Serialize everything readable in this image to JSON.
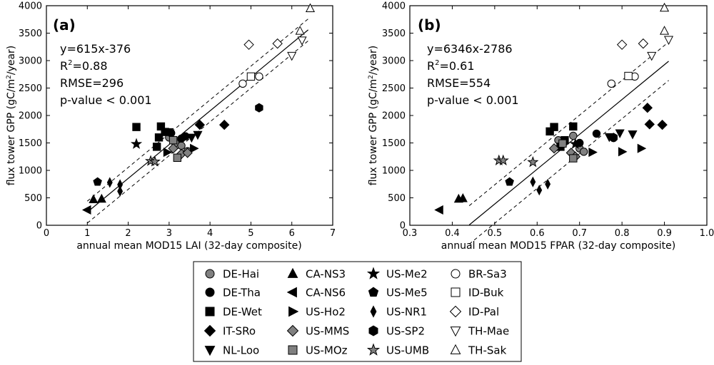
{
  "chart_data": [
    {
      "panel_label": "(a)",
      "type": "scatter",
      "xlabel": "annual mean MOD15 LAI (32-day composite)",
      "ylabel": "flux tower GPP (gC/m²/year)",
      "xlim": [
        0,
        7
      ],
      "ylim": [
        0,
        4000
      ],
      "xticks": [
        0,
        1,
        2,
        3,
        4,
        5,
        6,
        7
      ],
      "xtick_labels": [
        "0",
        "1",
        "2",
        "3",
        "4",
        "5",
        "6",
        "7"
      ],
      "yticks": [
        0,
        500,
        1000,
        1500,
        2000,
        2500,
        3000,
        3500,
        4000
      ],
      "ytick_labels": [
        "0",
        "500",
        "1000",
        "1500",
        "2000",
        "2500",
        "3000",
        "3500",
        "4000"
      ],
      "stats": {
        "equation": "y=615x-376",
        "r2_label": "R",
        "r2_value": "=0.88",
        "rmse": "RMSE=296",
        "pvalue": "p-value < 0.001"
      },
      "fit": {
        "slope": 615,
        "intercept": -376,
        "x_range": [
          1.0,
          6.4
        ],
        "band_offset": 200
      },
      "points": [
        {
          "site": "DE-Hai",
          "x": 3.0,
          "y": 1600
        },
        {
          "site": "DE-Hai",
          "x": 3.15,
          "y": 1500
        },
        {
          "site": "DE-Hai",
          "x": 3.3,
          "y": 1450
        },
        {
          "site": "DE-Hai",
          "x": 3.45,
          "y": 1350
        },
        {
          "site": "DE-Tha",
          "x": 3.05,
          "y": 1680
        },
        {
          "site": "DE-Tha",
          "x": 3.4,
          "y": 1620
        },
        {
          "site": "DE-Tha",
          "x": 3.3,
          "y": 1580
        },
        {
          "site": "DE-Wet",
          "x": 2.2,
          "y": 1790
        },
        {
          "site": "DE-Wet",
          "x": 2.8,
          "y": 1800
        },
        {
          "site": "DE-Wet",
          "x": 2.9,
          "y": 1700
        },
        {
          "site": "DE-Wet",
          "x": 2.75,
          "y": 1600
        },
        {
          "site": "DE-Wet",
          "x": 2.7,
          "y": 1430
        },
        {
          "site": "IT-SRo",
          "x": 3.75,
          "y": 1830
        },
        {
          "site": "IT-SRo",
          "x": 4.35,
          "y": 1830
        },
        {
          "site": "NL-Loo",
          "x": 3.0,
          "y": 1700
        },
        {
          "site": "NL-Loo",
          "x": 3.55,
          "y": 1600
        },
        {
          "site": "NL-Loo",
          "x": 3.7,
          "y": 1650
        },
        {
          "site": "CA-NS3",
          "x": 1.15,
          "y": 470
        },
        {
          "site": "CA-NS3",
          "x": 1.35,
          "y": 480
        },
        {
          "site": "CA-NS6",
          "x": 1.0,
          "y": 280
        },
        {
          "site": "US-Ho2",
          "x": 2.95,
          "y": 1330
        },
        {
          "site": "US-Ho2",
          "x": 3.6,
          "y": 1400
        },
        {
          "site": "US-MMS",
          "x": 3.1,
          "y": 1400
        },
        {
          "site": "US-MMS",
          "x": 3.3,
          "y": 1300
        },
        {
          "site": "US-MMS",
          "x": 3.45,
          "y": 1320
        },
        {
          "site": "US-MOz",
          "x": 3.1,
          "y": 1550
        },
        {
          "site": "US-MOz",
          "x": 3.2,
          "y": 1230
        },
        {
          "site": "US-Me2",
          "x": 2.2,
          "y": 1480
        },
        {
          "site": "US-Me5",
          "x": 1.25,
          "y": 790
        },
        {
          "site": "US-NR1",
          "x": 1.55,
          "y": 780
        },
        {
          "site": "US-NR1",
          "x": 1.8,
          "y": 740
        },
        {
          "site": "US-NR1",
          "x": 1.8,
          "y": 620
        },
        {
          "site": "US-SP2",
          "x": 5.2,
          "y": 2140
        },
        {
          "site": "US-UMB",
          "x": 2.55,
          "y": 1170
        },
        {
          "site": "US-UMB",
          "x": 2.65,
          "y": 1160
        },
        {
          "site": "BR-Sa3",
          "x": 4.8,
          "y": 2580
        },
        {
          "site": "BR-Sa3",
          "x": 5.2,
          "y": 2710
        },
        {
          "site": "ID-Buk",
          "x": 5.0,
          "y": 2710
        },
        {
          "site": "ID-Pal",
          "x": 4.95,
          "y": 3290
        },
        {
          "site": "ID-Pal",
          "x": 5.65,
          "y": 3310
        },
        {
          "site": "TH-Mae",
          "x": 6.0,
          "y": 3090
        },
        {
          "site": "TH-Mae",
          "x": 6.25,
          "y": 3370
        },
        {
          "site": "TH-Sak",
          "x": 6.2,
          "y": 3540
        },
        {
          "site": "TH-Sak",
          "x": 6.45,
          "y": 3950
        }
      ]
    },
    {
      "panel_label": "(b)",
      "type": "scatter",
      "xlabel": "annual mean MOD15 FPAR (32-day composite)",
      "ylabel": "flux tower GPP (gC/m²/year)",
      "xlim": [
        0.3,
        1.0
      ],
      "ylim": [
        0,
        4000
      ],
      "xticks": [
        0.3,
        0.4,
        0.5,
        0.6,
        0.7,
        0.8,
        0.9,
        1.0
      ],
      "xtick_labels": [
        "0.3",
        "0.4",
        "0.5",
        "0.6",
        "0.7",
        "0.8",
        "0.9",
        "1.0"
      ],
      "yticks": [
        0,
        500,
        1000,
        1500,
        2000,
        2500,
        3000,
        3500,
        4000
      ],
      "ytick_labels": [
        "0",
        "500",
        "1000",
        "1500",
        "2000",
        "2500",
        "3000",
        "3500",
        "4000"
      ],
      "stats": {
        "equation": "y=6346x-2786",
        "r2_label": "R",
        "r2_value": "=0.61",
        "rmse": "RMSE=554",
        "pvalue": "p-value < 0.001"
      },
      "fit": {
        "slope": 6346,
        "intercept": -2786,
        "x_range": [
          0.44,
          0.91
        ],
        "band_offset": 350
      },
      "points": [
        {
          "site": "DE-Hai",
          "x": 0.685,
          "y": 1630
        },
        {
          "site": "DE-Hai",
          "x": 0.65,
          "y": 1550
        },
        {
          "site": "DE-Hai",
          "x": 0.7,
          "y": 1400
        },
        {
          "site": "DE-Hai",
          "x": 0.71,
          "y": 1340
        },
        {
          "site": "DE-Tha",
          "x": 0.74,
          "y": 1670
        },
        {
          "site": "DE-Tha",
          "x": 0.78,
          "y": 1590
        },
        {
          "site": "DE-Tha",
          "x": 0.7,
          "y": 1500
        },
        {
          "site": "DE-Wet",
          "x": 0.64,
          "y": 1790
        },
        {
          "site": "DE-Wet",
          "x": 0.685,
          "y": 1800
        },
        {
          "site": "DE-Wet",
          "x": 0.63,
          "y": 1710
        },
        {
          "site": "DE-Wet",
          "x": 0.665,
          "y": 1550
        },
        {
          "site": "DE-Wet",
          "x": 0.655,
          "y": 1430
        },
        {
          "site": "IT-SRo",
          "x": 0.86,
          "y": 2140
        },
        {
          "site": "IT-SRo",
          "x": 0.865,
          "y": 1840
        },
        {
          "site": "IT-SRo",
          "x": 0.895,
          "y": 1830
        },
        {
          "site": "NL-Loo",
          "x": 0.77,
          "y": 1610
        },
        {
          "site": "NL-Loo",
          "x": 0.795,
          "y": 1680
        },
        {
          "site": "NL-Loo",
          "x": 0.825,
          "y": 1660
        },
        {
          "site": "CA-NS3",
          "x": 0.415,
          "y": 480
        },
        {
          "site": "CA-NS3",
          "x": 0.425,
          "y": 490
        },
        {
          "site": "CA-NS6",
          "x": 0.37,
          "y": 280
        },
        {
          "site": "US-Ho2",
          "x": 0.73,
          "y": 1330
        },
        {
          "site": "US-Ho2",
          "x": 0.8,
          "y": 1340
        },
        {
          "site": "US-Ho2",
          "x": 0.845,
          "y": 1400
        },
        {
          "site": "US-MMS",
          "x": 0.64,
          "y": 1400
        },
        {
          "site": "US-MMS",
          "x": 0.68,
          "y": 1320
        },
        {
          "site": "US-MMS",
          "x": 0.69,
          "y": 1250
        },
        {
          "site": "US-MOz",
          "x": 0.66,
          "y": 1490
        },
        {
          "site": "US-MOz",
          "x": 0.685,
          "y": 1220
        },
        {
          "site": "US-Me2",
          "x": 0.69,
          "y": 1480
        },
        {
          "site": "US-Me5",
          "x": 0.535,
          "y": 790
        },
        {
          "site": "US-NR1",
          "x": 0.59,
          "y": 790
        },
        {
          "site": "US-NR1",
          "x": 0.605,
          "y": 640
        },
        {
          "site": "US-NR1",
          "x": 0.625,
          "y": 750
        },
        {
          "site": "US-SP2",
          "x": 0.78,
          "y": 1600
        },
        {
          "site": "US-UMB",
          "x": 0.51,
          "y": 1180
        },
        {
          "site": "US-UMB",
          "x": 0.52,
          "y": 1180
        },
        {
          "site": "US-UMB",
          "x": 0.59,
          "y": 1150
        },
        {
          "site": "BR-Sa3",
          "x": 0.775,
          "y": 2580
        },
        {
          "site": "BR-Sa3",
          "x": 0.83,
          "y": 2710
        },
        {
          "site": "ID-Buk",
          "x": 0.815,
          "y": 2720
        },
        {
          "site": "ID-Pal",
          "x": 0.8,
          "y": 3290
        },
        {
          "site": "ID-Pal",
          "x": 0.85,
          "y": 3310
        },
        {
          "site": "TH-Mae",
          "x": 0.87,
          "y": 3090
        },
        {
          "site": "TH-Mae",
          "x": 0.91,
          "y": 3380
        },
        {
          "site": "TH-Sak",
          "x": 0.9,
          "y": 3540
        },
        {
          "site": "TH-Sak",
          "x": 0.9,
          "y": 3960
        }
      ]
    }
  ],
  "legend": {
    "placement": "bottom-center",
    "columns": [
      [
        {
          "site": "DE-Hai",
          "marker": "circle",
          "fill": "#808080"
        },
        {
          "site": "DE-Tha",
          "marker": "circle",
          "fill": "#000000"
        },
        {
          "site": "DE-Wet",
          "marker": "square",
          "fill": "#000000"
        },
        {
          "site": "IT-SRo",
          "marker": "diamond",
          "fill": "#000000"
        },
        {
          "site": "NL-Loo",
          "marker": "triangle-down",
          "fill": "#000000"
        }
      ],
      [
        {
          "site": "CA-NS3",
          "marker": "triangle-up",
          "fill": "#000000"
        },
        {
          "site": "CA-NS6",
          "marker": "triangle-left",
          "fill": "#000000"
        },
        {
          "site": "US-Ho2",
          "marker": "triangle-right",
          "fill": "#000000"
        },
        {
          "site": "US-MMS",
          "marker": "diamond",
          "fill": "#808080"
        },
        {
          "site": "US-MOz",
          "marker": "square",
          "fill": "#808080"
        }
      ],
      [
        {
          "site": "US-Me2",
          "marker": "star",
          "fill": "#000000"
        },
        {
          "site": "US-Me5",
          "marker": "pentagon",
          "fill": "#000000"
        },
        {
          "site": "US-NR1",
          "marker": "thin-diamond",
          "fill": "#000000"
        },
        {
          "site": "US-SP2",
          "marker": "hexagon",
          "fill": "#000000"
        },
        {
          "site": "US-UMB",
          "marker": "star",
          "fill": "#808080"
        }
      ],
      [
        {
          "site": "BR-Sa3",
          "marker": "circle",
          "fill": "#ffffff"
        },
        {
          "site": "ID-Buk",
          "marker": "square",
          "fill": "#ffffff"
        },
        {
          "site": "ID-Pal",
          "marker": "diamond",
          "fill": "#ffffff"
        },
        {
          "site": "TH-Mae",
          "marker": "triangle-down",
          "fill": "#ffffff"
        },
        {
          "site": "TH-Sak",
          "marker": "triangle-up",
          "fill": "#ffffff"
        }
      ]
    ]
  }
}
